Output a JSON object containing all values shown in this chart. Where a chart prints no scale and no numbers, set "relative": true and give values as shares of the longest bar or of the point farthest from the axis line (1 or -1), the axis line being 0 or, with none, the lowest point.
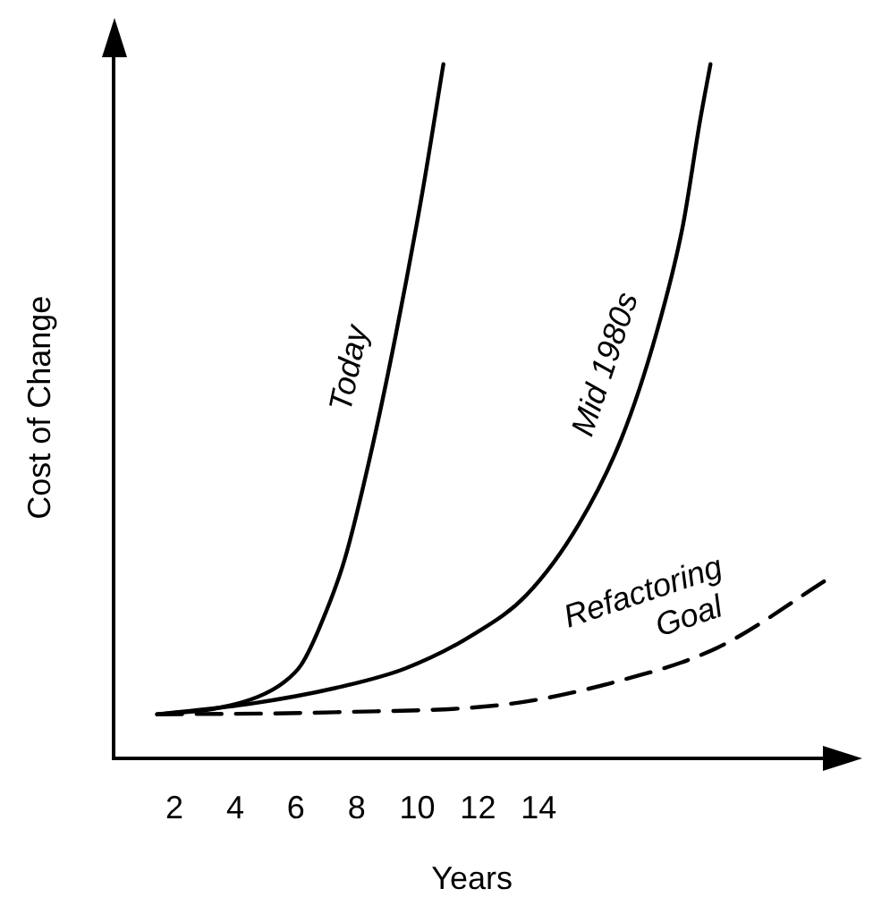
{
  "chart_data": {
    "type": "line",
    "xlabel": "Years",
    "ylabel": "Cost of Change",
    "relative": true,
    "tick_labels": "x",
    "grid": false,
    "legend": false,
    "xlim": [
      0,
      23.6
    ],
    "xticks": [
      2,
      4,
      6,
      8,
      10,
      12,
      14
    ],
    "series": [
      {
        "name": "Today",
        "color": "#000000",
        "line_style": "solid",
        "x": [
          1.43,
          3.31,
          4.74,
          5.6,
          6.17,
          6.74,
          7.6,
          8.46,
          9.31,
          10.17,
          10.86
        ],
        "values": [
          0.063,
          0.071,
          0.088,
          0.109,
          0.134,
          0.184,
          0.285,
          0.437,
          0.614,
          0.816,
          1
        ]
      },
      {
        "name": "Mid 1980s",
        "color": "#000000",
        "line_style": "solid",
        "x": [
          1.43,
          4.46,
          7.31,
          9.6,
          11.89,
          13.6,
          15.31,
          16.74,
          17.89,
          18.74,
          19.31,
          19.66
        ],
        "values": [
          0.063,
          0.078,
          0.101,
          0.129,
          0.179,
          0.235,
          0.336,
          0.462,
          0.614,
          0.765,
          0.917,
          1
        ]
      },
      {
        "name": "Refactoring Goal",
        "color": "#000000",
        "line_style": "dashed",
        "x": [
          1.43,
          7.31,
          13.03,
          16.46,
          19.89,
          23.6
        ],
        "values": [
          0.063,
          0.066,
          0.078,
          0.109,
          0.159,
          0.26
        ]
      }
    ]
  }
}
